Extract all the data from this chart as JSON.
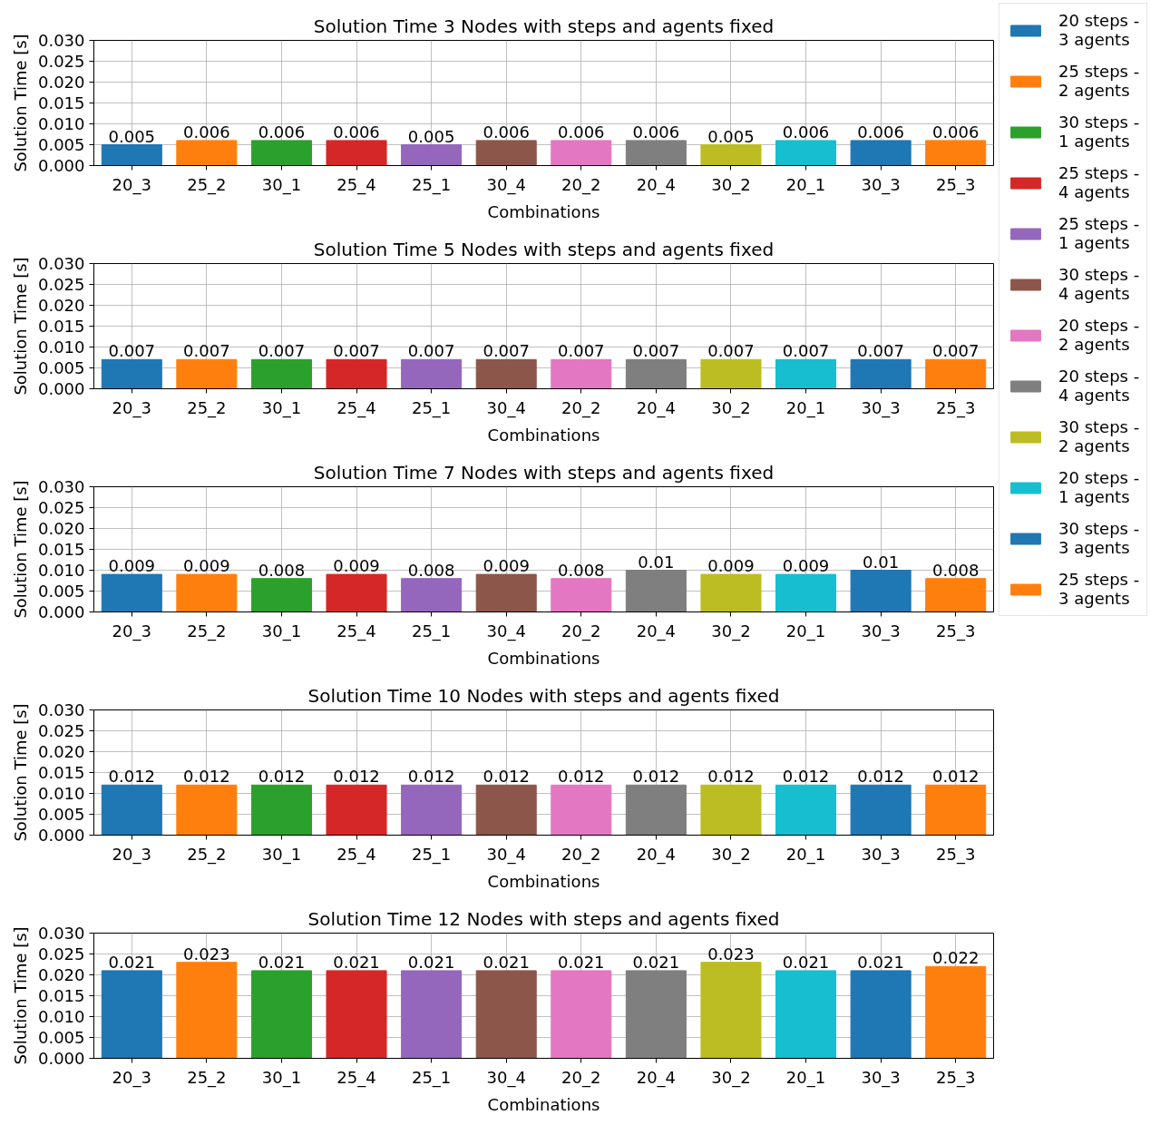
{
  "chart_data": [
    {
      "type": "bar",
      "title": "Solution Time 3 Nodes with steps and agents fixed",
      "xlabel": "Combinations",
      "ylabel": "Solution Time [s]",
      "categories": [
        "20_3",
        "25_2",
        "30_1",
        "25_4",
        "25_1",
        "30_4",
        "20_2",
        "20_4",
        "30_2",
        "20_1",
        "30_3",
        "25_3"
      ],
      "series": [
        {
          "name": "20 steps - 3 agents",
          "color": "#1f77b4",
          "values": [
            0.005,
            null,
            null,
            null,
            null,
            null,
            null,
            null,
            null,
            null,
            null,
            null
          ]
        },
        {
          "name": "25 steps - 2 agents",
          "color": "#ff7f0e",
          "values": [
            null,
            0.006,
            null,
            null,
            null,
            null,
            null,
            null,
            null,
            null,
            null,
            null
          ]
        },
        {
          "name": "30 steps - 1 agents",
          "color": "#2ca02c",
          "values": [
            null,
            null,
            0.006,
            null,
            null,
            null,
            null,
            null,
            null,
            null,
            null,
            null
          ]
        },
        {
          "name": "25 steps - 4 agents",
          "color": "#d62728",
          "values": [
            null,
            null,
            null,
            0.006,
            null,
            null,
            null,
            null,
            null,
            null,
            null,
            null
          ]
        },
        {
          "name": "25 steps - 1 agents",
          "color": "#9467bd",
          "values": [
            null,
            null,
            null,
            null,
            0.005,
            null,
            null,
            null,
            null,
            null,
            null,
            null
          ]
        },
        {
          "name": "30 steps - 4 agents",
          "color": "#8c564b",
          "values": [
            null,
            null,
            null,
            null,
            null,
            0.006,
            null,
            null,
            null,
            null,
            null,
            null
          ]
        },
        {
          "name": "20 steps - 2 agents",
          "color": "#e377c2",
          "values": [
            null,
            null,
            null,
            null,
            null,
            null,
            0.006,
            null,
            null,
            null,
            null,
            null
          ]
        },
        {
          "name": "20 steps - 4 agents",
          "color": "#7f7f7f",
          "values": [
            null,
            null,
            null,
            null,
            null,
            null,
            null,
            0.006,
            null,
            null,
            null,
            null
          ]
        },
        {
          "name": "30 steps - 2 agents",
          "color": "#bcbd22",
          "values": [
            null,
            null,
            null,
            null,
            null,
            null,
            null,
            null,
            0.005,
            null,
            null,
            null
          ]
        },
        {
          "name": "20 steps - 1 agents",
          "color": "#17becf",
          "values": [
            null,
            null,
            null,
            null,
            null,
            null,
            null,
            null,
            null,
            0.006,
            null,
            null
          ]
        },
        {
          "name": "30 steps - 3 agents",
          "color": "#1f77b4",
          "values": [
            null,
            null,
            null,
            null,
            null,
            null,
            null,
            null,
            null,
            null,
            0.006,
            null
          ]
        },
        {
          "name": "25 steps - 3 agents",
          "color": "#ff7f0e",
          "values": [
            null,
            null,
            null,
            null,
            null,
            null,
            null,
            null,
            null,
            null,
            null,
            0.006
          ]
        }
      ],
      "ylim": [
        0,
        0.03
      ],
      "yticks": [
        {
          "value": 0,
          "label": "0.000"
        },
        0.005,
        {
          "value": 0.01,
          "label": "0.010"
        },
        0.015,
        {
          "value": 0.02,
          "label": "0.020"
        },
        0.025,
        {
          "value": 0.03,
          "label": "0.030"
        }
      ],
      "grid": true,
      "legend": "right",
      "data_labels": true
    },
    {
      "type": "bar",
      "title": "Solution Time 5 Nodes with steps and agents fixed",
      "xlabel": "Combinations",
      "ylabel": "Solution Time [s]",
      "categories": [
        "20_3",
        "25_2",
        "30_1",
        "25_4",
        "25_1",
        "30_4",
        "20_2",
        "20_4",
        "30_2",
        "20_1",
        "30_3",
        "25_3"
      ],
      "values": [
        0.007,
        0.007,
        0.007,
        0.007,
        0.007,
        0.007,
        0.007,
        0.007,
        0.007,
        0.007,
        0.007,
        0.007
      ],
      "colors": [
        "#1f77b4",
        "#ff7f0e",
        "#2ca02c",
        "#d62728",
        "#9467bd",
        "#8c564b",
        "#e377c2",
        "#7f7f7f",
        "#bcbd22",
        "#17becf",
        "#1f77b4",
        "#ff7f0e"
      ],
      "ylim": [
        0,
        0.03
      ],
      "yticks": [
        {
          "value": 0,
          "label": "0.000"
        },
        0.005,
        {
          "value": 0.01,
          "label": "0.010"
        },
        0.015,
        {
          "value": 0.02,
          "label": "0.020"
        },
        0.025,
        {
          "value": 0.03,
          "label": "0.030"
        }
      ],
      "grid": true,
      "data_labels": true
    },
    {
      "type": "bar",
      "title": "Solution Time 7 Nodes with steps and agents fixed",
      "xlabel": "Combinations",
      "ylabel": "Solution Time [s]",
      "categories": [
        "20_3",
        "25_2",
        "30_1",
        "25_4",
        "25_1",
        "30_4",
        "20_2",
        "20_4",
        "30_2",
        "20_1",
        "30_3",
        "25_3"
      ],
      "values": [
        0.009,
        0.009,
        0.008,
        0.009,
        0.008,
        0.009,
        0.008,
        0.01,
        0.009,
        0.009,
        0.01,
        0.008
      ],
      "colors": [
        "#1f77b4",
        "#ff7f0e",
        "#2ca02c",
        "#d62728",
        "#9467bd",
        "#8c564b",
        "#e377c2",
        "#7f7f7f",
        "#bcbd22",
        "#17becf",
        "#1f77b4",
        "#ff7f0e"
      ],
      "ylim": [
        0,
        0.03
      ],
      "yticks": [
        {
          "value": 0,
          "label": "0.000"
        },
        0.005,
        {
          "value": 0.01,
          "label": "0.010"
        },
        0.015,
        {
          "value": 0.02,
          "label": "0.020"
        },
        0.025,
        {
          "value": 0.03,
          "label": "0.030"
        }
      ],
      "grid": true,
      "data_labels": true
    },
    {
      "type": "bar",
      "title": "Solution Time 10 Nodes with steps and agents fixed",
      "xlabel": "Combinations",
      "ylabel": "Solution Time [s]",
      "categories": [
        "20_3",
        "25_2",
        "30_1",
        "25_4",
        "25_1",
        "30_4",
        "20_2",
        "20_4",
        "30_2",
        "20_1",
        "30_3",
        "25_3"
      ],
      "values": [
        0.012,
        0.012,
        0.012,
        0.012,
        0.012,
        0.012,
        0.012,
        0.012,
        0.012,
        0.012,
        0.012,
        0.012
      ],
      "colors": [
        "#1f77b4",
        "#ff7f0e",
        "#2ca02c",
        "#d62728",
        "#9467bd",
        "#8c564b",
        "#e377c2",
        "#7f7f7f",
        "#bcbd22",
        "#17becf",
        "#1f77b4",
        "#ff7f0e"
      ],
      "ylim": [
        0,
        0.03
      ],
      "yticks": [
        {
          "value": 0,
          "label": "0.000"
        },
        0.005,
        {
          "value": 0.01,
          "label": "0.010"
        },
        0.015,
        {
          "value": 0.02,
          "label": "0.020"
        },
        0.025,
        {
          "value": 0.03,
          "label": "0.030"
        }
      ],
      "grid": true,
      "data_labels": true
    },
    {
      "type": "bar",
      "title": "Solution Time 12 Nodes with steps and agents fixed",
      "xlabel": "Combinations",
      "ylabel": "Solution Time [s]",
      "categories": [
        "20_3",
        "25_2",
        "30_1",
        "25_4",
        "25_1",
        "30_4",
        "20_2",
        "20_4",
        "30_2",
        "20_1",
        "30_3",
        "25_3"
      ],
      "values": [
        0.021,
        0.023,
        0.021,
        0.021,
        0.021,
        0.021,
        0.021,
        0.021,
        0.023,
        0.021,
        0.021,
        0.022
      ],
      "colors": [
        "#1f77b4",
        "#ff7f0e",
        "#2ca02c",
        "#d62728",
        "#9467bd",
        "#8c564b",
        "#e377c2",
        "#7f7f7f",
        "#bcbd22",
        "#17becf",
        "#1f77b4",
        "#ff7f0e"
      ],
      "ylim": [
        0,
        0.03
      ],
      "yticks": [
        {
          "value": 0,
          "label": "0.000"
        },
        0.005,
        {
          "value": 0.01,
          "label": "0.010"
        },
        0.015,
        {
          "value": 0.02,
          "label": "0.020"
        },
        0.025,
        {
          "value": 0.03,
          "label": "0.030"
        }
      ],
      "grid": true,
      "data_labels": true
    }
  ]
}
